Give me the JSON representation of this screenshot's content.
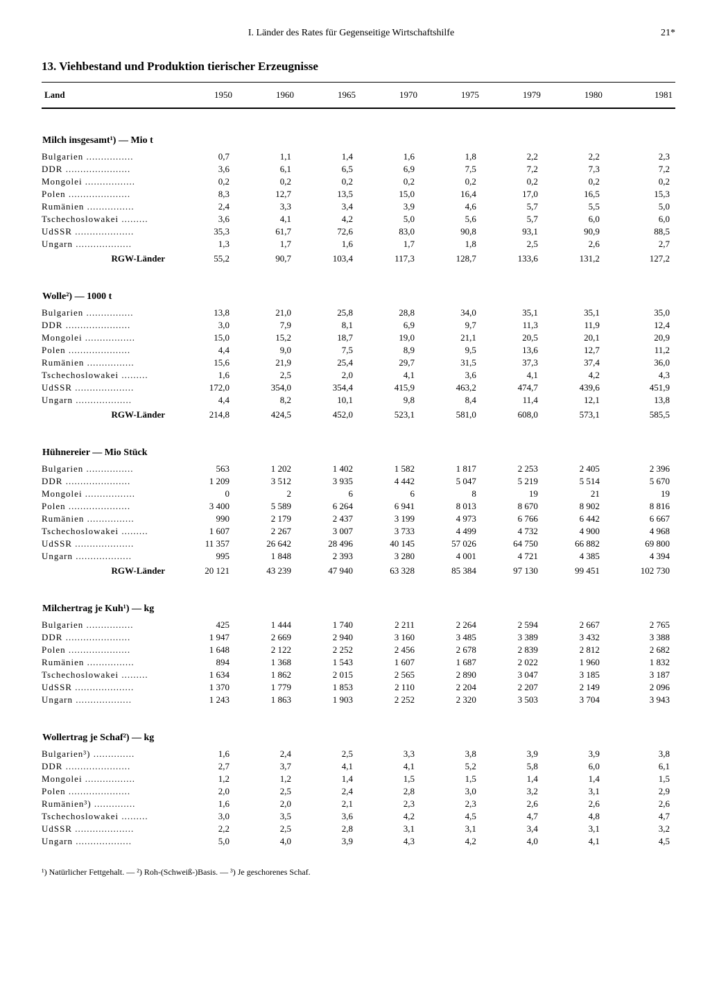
{
  "header": {
    "section": "I. Länder des Rates für Gegenseitige Wirtschaftshilfe",
    "page": "21*"
  },
  "title": "13. Viehbestand und Produktion tierischer Erzeugnisse",
  "columns": {
    "land": "Land",
    "years": [
      "1950",
      "1960",
      "1965",
      "1970",
      "1975",
      "1979",
      "1980",
      "1981"
    ]
  },
  "countries_dots": {
    "Bulgarien": "Bulgarien ................",
    "DDR": "DDR ......................",
    "Mongolei": "Mongolei .................",
    "Polen": "Polen .....................",
    "Rumänien": "Rumänien ................",
    "Tschechoslowakei": "Tschechoslowakei .........",
    "UdSSR": "UdSSR ....................",
    "Ungarn": "Ungarn ..................."
  },
  "sections": [
    {
      "heading": "Milch insgesamt¹) — Mio t",
      "rows": [
        {
          "c": "Bulgarien",
          "v": [
            "0,7",
            "1,1",
            "1,4",
            "1,6",
            "1,8",
            "2,2",
            "2,2",
            "2,3"
          ]
        },
        {
          "c": "DDR",
          "v": [
            "3,6",
            "6,1",
            "6,5",
            "6,9",
            "7,5",
            "7,2",
            "7,3",
            "7,2"
          ]
        },
        {
          "c": "Mongolei",
          "v": [
            "0,2",
            "0,2",
            "0,2",
            "0,2",
            "0,2",
            "0,2",
            "0,2",
            "0,2"
          ]
        },
        {
          "c": "Polen",
          "v": [
            "8,3",
            "12,7",
            "13,5",
            "15,0",
            "16,4",
            "17,0",
            "16,5",
            "15,3"
          ]
        },
        {
          "c": "Rumänien",
          "v": [
            "2,4",
            "3,3",
            "3,4",
            "3,9",
            "4,6",
            "5,7",
            "5,5",
            "5,0"
          ]
        },
        {
          "c": "Tschechoslowakei",
          "v": [
            "3,6",
            "4,1",
            "4,2",
            "5,0",
            "5,6",
            "5,7",
            "6,0",
            "6,0"
          ]
        },
        {
          "c": "UdSSR",
          "v": [
            "35,3",
            "61,7",
            "72,6",
            "83,0",
            "90,8",
            "93,1",
            "90,9",
            "88,5"
          ]
        },
        {
          "c": "Ungarn",
          "v": [
            "1,3",
            "1,7",
            "1,6",
            "1,7",
            "1,8",
            "2,5",
            "2,6",
            "2,7"
          ]
        }
      ],
      "total": {
        "label": "RGW-Länder",
        "v": [
          "55,2",
          "90,7",
          "103,4",
          "117,3",
          "128,7",
          "133,6",
          "131,2",
          "127,2"
        ]
      }
    },
    {
      "heading": "Wolle²) — 1000 t",
      "rows": [
        {
          "c": "Bulgarien",
          "v": [
            "13,8",
            "21,0",
            "25,8",
            "28,8",
            "34,0",
            "35,1",
            "35,1",
            "35,0"
          ]
        },
        {
          "c": "DDR",
          "v": [
            "3,0",
            "7,9",
            "8,1",
            "6,9",
            "9,7",
            "11,3",
            "11,9",
            "12,4"
          ]
        },
        {
          "c": "Mongolei",
          "v": [
            "15,0",
            "15,2",
            "18,7",
            "19,0",
            "21,1",
            "20,5",
            "20,1",
            "20,9"
          ]
        },
        {
          "c": "Polen",
          "v": [
            "4,4",
            "9,0",
            "7,5",
            "8,9",
            "9,5",
            "13,6",
            "12,7",
            "11,2"
          ]
        },
        {
          "c": "Rumänien",
          "v": [
            "15,6",
            "21,9",
            "25,4",
            "29,7",
            "31,5",
            "37,3",
            "37,4",
            "36,0"
          ]
        },
        {
          "c": "Tschechoslowakei",
          "v": [
            "1,6",
            "2,5",
            "2,0",
            "4,1",
            "3,6",
            "4,1",
            "4,2",
            "4,3"
          ]
        },
        {
          "c": "UdSSR",
          "v": [
            "172,0",
            "354,0",
            "354,4",
            "415,9",
            "463,2",
            "474,7",
            "439,6",
            "451,9"
          ]
        },
        {
          "c": "Ungarn",
          "v": [
            "4,4",
            "8,2",
            "10,1",
            "9,8",
            "8,4",
            "11,4",
            "12,1",
            "13,8"
          ]
        }
      ],
      "total": {
        "label": "RGW-Länder",
        "v": [
          "214,8",
          "424,5",
          "452,0",
          "523,1",
          "581,0",
          "608,0",
          "573,1",
          "585,5"
        ]
      }
    },
    {
      "heading": "Hühnereier — Mio Stück",
      "rows": [
        {
          "c": "Bulgarien",
          "v": [
            "563",
            "1 202",
            "1 402",
            "1 582",
            "1 817",
            "2 253",
            "2 405",
            "2 396"
          ]
        },
        {
          "c": "DDR",
          "v": [
            "1 209",
            "3 512",
            "3 935",
            "4 442",
            "5 047",
            "5 219",
            "5 514",
            "5 670"
          ]
        },
        {
          "c": "Mongolei",
          "v": [
            "0",
            "2",
            "6",
            "6",
            "8",
            "19",
            "21",
            "19"
          ]
        },
        {
          "c": "Polen",
          "v": [
            "3 400",
            "5 589",
            "6 264",
            "6 941",
            "8 013",
            "8 670",
            "8 902",
            "8 816"
          ]
        },
        {
          "c": "Rumänien",
          "v": [
            "990",
            "2 179",
            "2 437",
            "3 199",
            "4 973",
            "6 766",
            "6 442",
            "6 667"
          ]
        },
        {
          "c": "Tschechoslowakei",
          "v": [
            "1 607",
            "2 267",
            "3 007",
            "3 733",
            "4 499",
            "4 732",
            "4 900",
            "4 968"
          ]
        },
        {
          "c": "UdSSR",
          "v": [
            "11 357",
            "26 642",
            "28 496",
            "40 145",
            "57 026",
            "64 750",
            "66 882",
            "69 800"
          ]
        },
        {
          "c": "Ungarn",
          "v": [
            "995",
            "1 848",
            "2 393",
            "3 280",
            "4 001",
            "4 721",
            "4 385",
            "4 394"
          ]
        }
      ],
      "total": {
        "label": "RGW-Länder",
        "v": [
          "20 121",
          "43 239",
          "47 940",
          "63 328",
          "85 384",
          "97 130",
          "99 451",
          "102 730"
        ]
      }
    },
    {
      "heading": "Milchertrag je Kuh¹) — kg",
      "rows": [
        {
          "c": "Bulgarien",
          "v": [
            "425",
            "1 444",
            "1 740",
            "2 211",
            "2 264",
            "2 594",
            "2 667",
            "2 765"
          ]
        },
        {
          "c": "DDR",
          "v": [
            "1 947",
            "2 669",
            "2 940",
            "3 160",
            "3 485",
            "3 389",
            "3 432",
            "3 388"
          ]
        },
        {
          "c": "Polen",
          "v": [
            "1 648",
            "2 122",
            "2 252",
            "2 456",
            "2 678",
            "2 839",
            "2 812",
            "2 682"
          ]
        },
        {
          "c": "Rumänien",
          "v": [
            "894",
            "1 368",
            "1 543",
            "1 607",
            "1 687",
            "2 022",
            "1 960",
            "1 832"
          ]
        },
        {
          "c": "Tschechoslowakei",
          "v": [
            "1 634",
            "1 862",
            "2 015",
            "2 565",
            "2 890",
            "3 047",
            "3 185",
            "3 187"
          ]
        },
        {
          "c": "UdSSR",
          "v": [
            "1 370",
            "1 779",
            "1 853",
            "2 110",
            "2 204",
            "2 207",
            "2 149",
            "2 096"
          ]
        },
        {
          "c": "Ungarn",
          "v": [
            "1 243",
            "1 863",
            "1 903",
            "2 252",
            "2 320",
            "3 503",
            "3 704",
            "3 943"
          ]
        }
      ],
      "total": null
    },
    {
      "heading": "Wollertrag je Schaf²) — kg",
      "rows": [
        {
          "c": "Bulgarien",
          "label": "Bulgarien³) ..............",
          "v": [
            "1,6",
            "2,4",
            "2,5",
            "3,3",
            "3,8",
            "3,9",
            "3,9",
            "3,8"
          ]
        },
        {
          "c": "DDR",
          "v": [
            "2,7",
            "3,7",
            "4,1",
            "4,1",
            "5,2",
            "5,8",
            "6,0",
            "6,1"
          ]
        },
        {
          "c": "Mongolei",
          "v": [
            "1,2",
            "1,2",
            "1,4",
            "1,5",
            "1,5",
            "1,4",
            "1,4",
            "1,5"
          ]
        },
        {
          "c": "Polen",
          "v": [
            "2,0",
            "2,5",
            "2,4",
            "2,8",
            "3,0",
            "3,2",
            "3,1",
            "2,9"
          ]
        },
        {
          "c": "Rumänien",
          "label": "Rumänien³) ..............",
          "v": [
            "1,6",
            "2,0",
            "2,1",
            "2,3",
            "2,3",
            "2,6",
            "2,6",
            "2,6"
          ]
        },
        {
          "c": "Tschechoslowakei",
          "v": [
            "3,0",
            "3,5",
            "3,6",
            "4,2",
            "4,5",
            "4,7",
            "4,8",
            "4,7"
          ]
        },
        {
          "c": "UdSSR",
          "v": [
            "2,2",
            "2,5",
            "2,8",
            "3,1",
            "3,1",
            "3,4",
            "3,1",
            "3,2"
          ]
        },
        {
          "c": "Ungarn",
          "v": [
            "5,0",
            "4,0",
            "3,9",
            "4,3",
            "4,2",
            "4,0",
            "4,1",
            "4,5"
          ]
        }
      ],
      "total": null
    }
  ],
  "footnotes": "¹) Natürlicher Fettgehalt. — ²) Roh-(Schweiß-)Basis. — ³) Je geschorenes Schaf."
}
